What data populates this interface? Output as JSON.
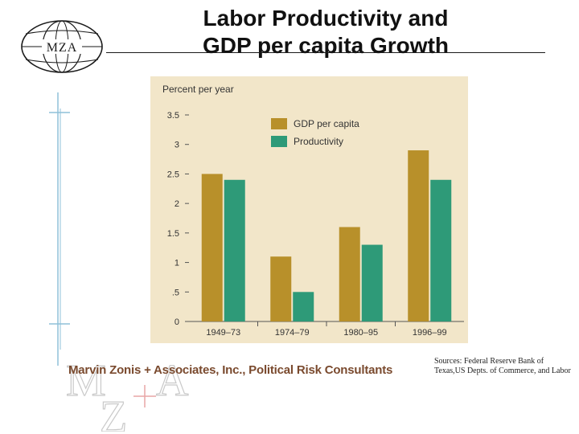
{
  "header": {
    "logo_text": "MZA",
    "title_line1": "Labor Productivity and",
    "title_line2": "GDP per capita Growth"
  },
  "footer": {
    "company": "Marvin Zonis + Associates, Inc., Political Risk Consultants",
    "sources": "Sources: Federal Reserve Bank of Texas,US Depts. of Commerce, and Labor"
  },
  "colors": {
    "chart_background": "#f2e6c9",
    "gdp_per_capita": "#b8902a",
    "productivity": "#2e9a78",
    "footer_text": "#7a4a2e"
  },
  "chart_data": {
    "type": "bar",
    "ylabel": "Percent per year",
    "categories": [
      "1949–73",
      "1974–79",
      "1980–95",
      "1996–99"
    ],
    "series": [
      {
        "name": "GDP per capita",
        "values": [
          2.5,
          1.1,
          1.6,
          2.9
        ]
      },
      {
        "name": "Productivity",
        "values": [
          2.4,
          0.5,
          1.3,
          2.4
        ]
      }
    ],
    "ylim": [
      0,
      3.5
    ],
    "yticks": [
      0,
      0.5,
      1,
      1.5,
      2,
      2.5,
      3,
      3.5
    ],
    "ytick_labels": [
      "0",
      ".5",
      "1",
      "1.5",
      "2",
      "2.5",
      "3",
      "3.5"
    ],
    "legend": "top-right",
    "grid": false
  }
}
